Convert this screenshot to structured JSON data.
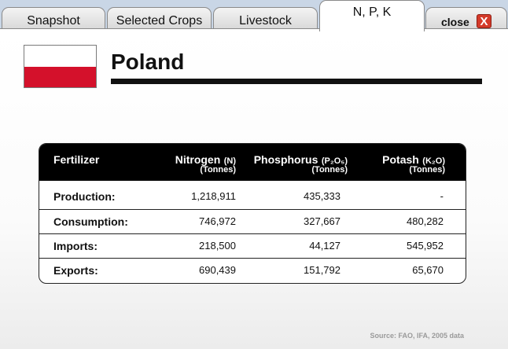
{
  "tabs": [
    {
      "label": "Snapshot"
    },
    {
      "label": "Selected Crops"
    },
    {
      "label": "Livestock"
    },
    {
      "label": "N, P, K"
    }
  ],
  "close_label": "close",
  "close_icon": "X",
  "country": "Poland",
  "table": {
    "headers": {
      "fertilizer": "Fertilizer",
      "nitrogen": {
        "name": "Nitrogen",
        "formula": "(N)",
        "unit": "(Tonnes)"
      },
      "phosphorus": {
        "name": "Phosphorus",
        "formula": "(P₂O₅)",
        "unit": "(Tonnes)"
      },
      "potash": {
        "name": "Potash",
        "formula": "(K₂O)",
        "unit": "(Tonnes)"
      }
    },
    "rows": [
      {
        "label": "Production:",
        "nitrogen": "1,218,911",
        "phosphorus": "435,333",
        "potash": "-"
      },
      {
        "label": "Consumption:",
        "nitrogen": "746,972",
        "phosphorus": "327,667",
        "potash": "480,282"
      },
      {
        "label": "Imports:",
        "nitrogen": "218,500",
        "phosphorus": "44,127",
        "potash": "545,952"
      },
      {
        "label": "Exports:",
        "nitrogen": "690,439",
        "phosphorus": "151,792",
        "potash": "65,670"
      }
    ]
  },
  "source": "Source: FAO, IFA, 2005 data",
  "colors": {
    "flag_red": "#d4112b",
    "flag_white": "#ffffff",
    "close_red": "#d43a2a"
  }
}
